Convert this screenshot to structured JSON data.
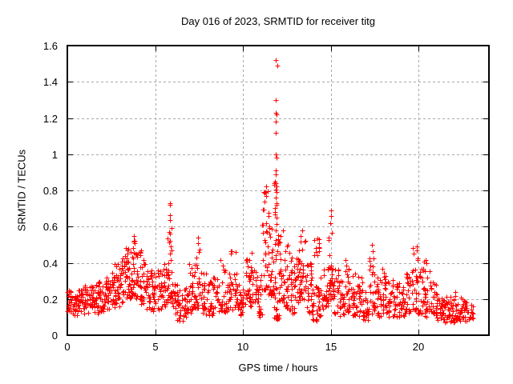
{
  "colors": {
    "marker": "#ff0000",
    "grid": "#a8a8a8",
    "frame": "#000000",
    "text": "#000000",
    "background": "#ffffff"
  },
  "chart_data": {
    "type": "scatter",
    "title": "Day 016 of 2023, SRMTID for receiver titg",
    "xlabel": "GPS time / hours",
    "ylabel": "SRMTID / TECUs",
    "xlim": [
      0,
      24
    ],
    "ylim": [
      0,
      1.6
    ],
    "xticks": [
      0,
      5,
      10,
      15,
      20
    ],
    "xtick_labels": [
      "0",
      "5",
      "10",
      "15",
      "20"
    ],
    "yticks": [
      0,
      0.2,
      0.4,
      0.6,
      0.8,
      1,
      1.2,
      1.4,
      1.6
    ],
    "ytick_labels": [
      "0",
      "0.2",
      "0.4",
      "0.6",
      "0.8",
      "1",
      "1.2",
      "1.4",
      "1.6"
    ],
    "grid": "dashed",
    "legend": "none",
    "marker": "plus",
    "point_bands": [
      [
        0.0,
        0.3,
        0.13,
        0.25,
        22
      ],
      [
        0.3,
        0.6,
        0.11,
        0.22,
        22
      ],
      [
        0.6,
        0.9,
        0.13,
        0.25,
        22
      ],
      [
        0.9,
        1.2,
        0.12,
        0.28,
        24
      ],
      [
        1.2,
        1.5,
        0.14,
        0.27,
        22
      ],
      [
        1.5,
        1.8,
        0.12,
        0.3,
        24
      ],
      [
        1.8,
        2.1,
        0.13,
        0.3,
        24
      ],
      [
        2.1,
        2.4,
        0.14,
        0.33,
        24
      ],
      [
        2.4,
        2.7,
        0.15,
        0.36,
        24
      ],
      [
        2.7,
        3.0,
        0.16,
        0.4,
        26
      ],
      [
        3.0,
        3.3,
        0.18,
        0.45,
        26
      ],
      [
        3.3,
        3.6,
        0.2,
        0.5,
        28
      ],
      [
        3.6,
        3.9,
        0.22,
        0.55,
        30
      ],
      [
        3.9,
        4.2,
        0.2,
        0.47,
        26
      ],
      [
        4.2,
        4.5,
        0.17,
        0.43,
        24
      ],
      [
        4.5,
        4.8,
        0.14,
        0.38,
        22
      ],
      [
        4.8,
        5.1,
        0.12,
        0.34,
        22
      ],
      [
        5.1,
        5.4,
        0.14,
        0.36,
        22
      ],
      [
        5.4,
        5.65,
        0.16,
        0.4,
        18
      ],
      [
        5.65,
        5.95,
        0.18,
        0.66,
        30
      ],
      [
        5.95,
        6.25,
        0.11,
        0.3,
        20
      ],
      [
        6.25,
        6.6,
        0.07,
        0.25,
        22
      ],
      [
        6.6,
        6.9,
        0.1,
        0.28,
        20
      ],
      [
        6.9,
        7.2,
        0.12,
        0.4,
        22
      ],
      [
        7.2,
        7.6,
        0.15,
        0.52,
        28
      ],
      [
        7.6,
        7.9,
        0.12,
        0.36,
        22
      ],
      [
        7.9,
        8.3,
        0.1,
        0.3,
        24
      ],
      [
        8.3,
        8.7,
        0.12,
        0.34,
        24
      ],
      [
        8.7,
        9.1,
        0.13,
        0.42,
        26
      ],
      [
        9.1,
        9.45,
        0.14,
        0.47,
        24
      ],
      [
        9.45,
        9.75,
        0.13,
        0.35,
        20
      ],
      [
        9.75,
        10.05,
        0.1,
        0.28,
        20
      ],
      [
        10.05,
        10.45,
        0.16,
        0.42,
        26
      ],
      [
        10.45,
        10.85,
        0.18,
        0.46,
        26
      ],
      [
        10.85,
        11.1,
        0.1,
        0.36,
        18
      ],
      [
        11.1,
        11.45,
        0.25,
        0.8,
        34
      ],
      [
        11.45,
        11.75,
        0.22,
        0.66,
        28
      ],
      [
        11.75,
        12.05,
        0.09,
        0.85,
        40
      ],
      [
        12.05,
        12.35,
        0.18,
        0.62,
        26
      ],
      [
        12.35,
        12.65,
        0.15,
        0.5,
        24
      ],
      [
        12.65,
        12.95,
        0.12,
        0.45,
        24
      ],
      [
        12.95,
        13.25,
        0.18,
        0.5,
        26
      ],
      [
        13.25,
        13.6,
        0.2,
        0.55,
        26
      ],
      [
        13.6,
        13.95,
        0.12,
        0.4,
        24
      ],
      [
        13.95,
        14.25,
        0.08,
        0.28,
        20
      ],
      [
        14.05,
        14.35,
        0.44,
        0.55,
        12
      ],
      [
        14.25,
        14.6,
        0.1,
        0.33,
        22
      ],
      [
        14.6,
        14.85,
        0.14,
        0.38,
        18
      ],
      [
        14.85,
        15.15,
        0.2,
        0.64,
        30
      ],
      [
        15.15,
        15.5,
        0.12,
        0.38,
        22
      ],
      [
        15.5,
        15.8,
        0.1,
        0.3,
        20
      ],
      [
        15.8,
        16.15,
        0.13,
        0.47,
        26
      ],
      [
        16.15,
        16.5,
        0.11,
        0.4,
        24
      ],
      [
        16.5,
        16.8,
        0.1,
        0.33,
        22
      ],
      [
        16.8,
        17.15,
        0.08,
        0.26,
        20
      ],
      [
        17.15,
        17.5,
        0.12,
        0.5,
        26
      ],
      [
        17.5,
        17.85,
        0.1,
        0.32,
        22
      ],
      [
        17.85,
        18.2,
        0.12,
        0.38,
        24
      ],
      [
        18.2,
        18.55,
        0.1,
        0.32,
        22
      ],
      [
        18.55,
        18.9,
        0.1,
        0.3,
        22
      ],
      [
        18.9,
        19.25,
        0.1,
        0.28,
        22
      ],
      [
        19.25,
        19.6,
        0.12,
        0.38,
        24
      ],
      [
        19.6,
        19.95,
        0.14,
        0.49,
        26
      ],
      [
        19.95,
        20.3,
        0.12,
        0.42,
        24
      ],
      [
        20.3,
        20.65,
        0.1,
        0.42,
        24
      ],
      [
        20.65,
        21.0,
        0.1,
        0.3,
        24
      ],
      [
        21.0,
        21.35,
        0.08,
        0.24,
        24
      ],
      [
        21.35,
        21.7,
        0.07,
        0.22,
        24
      ],
      [
        21.7,
        22.05,
        0.07,
        0.22,
        24
      ],
      [
        22.05,
        22.4,
        0.08,
        0.24,
        24
      ],
      [
        22.4,
        22.75,
        0.07,
        0.19,
        22
      ],
      [
        22.75,
        23.1,
        0.09,
        0.17,
        16
      ]
    ],
    "outlier_points": [
      [
        11.86,
        1.52
      ],
      [
        11.95,
        1.49
      ],
      [
        11.88,
        1.3
      ],
      [
        11.87,
        1.23
      ],
      [
        11.9,
        1.22
      ],
      [
        11.88,
        1.18
      ],
      [
        11.87,
        1.12
      ],
      [
        11.88,
        1.0
      ],
      [
        11.89,
        0.98
      ],
      [
        11.87,
        0.91
      ],
      [
        11.88,
        0.89
      ],
      [
        11.86,
        0.84
      ],
      [
        11.9,
        0.82
      ],
      [
        11.92,
        0.79
      ],
      [
        11.85,
        0.76
      ],
      [
        11.91,
        0.72
      ],
      [
        11.84,
        0.68
      ],
      [
        11.9,
        0.65
      ],
      [
        11.3,
        0.82
      ],
      [
        11.27,
        0.79
      ],
      [
        11.33,
        0.77
      ],
      [
        11.22,
        0.74
      ],
      [
        5.82,
        0.73
      ],
      [
        5.84,
        0.72
      ],
      [
        5.83,
        0.665
      ],
      [
        5.86,
        0.635
      ],
      [
        5.81,
        0.57
      ],
      [
        5.85,
        0.52
      ],
      [
        15.0,
        0.69
      ],
      [
        15.02,
        0.66
      ],
      [
        14.98,
        0.62
      ],
      [
        3.8,
        0.55
      ],
      [
        3.77,
        0.52
      ],
      [
        7.42,
        0.54
      ],
      [
        7.45,
        0.51
      ],
      [
        12.0,
        0.53
      ],
      [
        12.02,
        0.51
      ],
      [
        11.98,
        0.5
      ],
      [
        13.35,
        0.58
      ],
      [
        13.3,
        0.55
      ],
      [
        17.33,
        0.5
      ],
      [
        19.88,
        0.49
      ],
      [
        19.9,
        0.47
      ],
      [
        9.58,
        0.46
      ],
      [
        22.5,
        0.2
      ]
    ]
  }
}
